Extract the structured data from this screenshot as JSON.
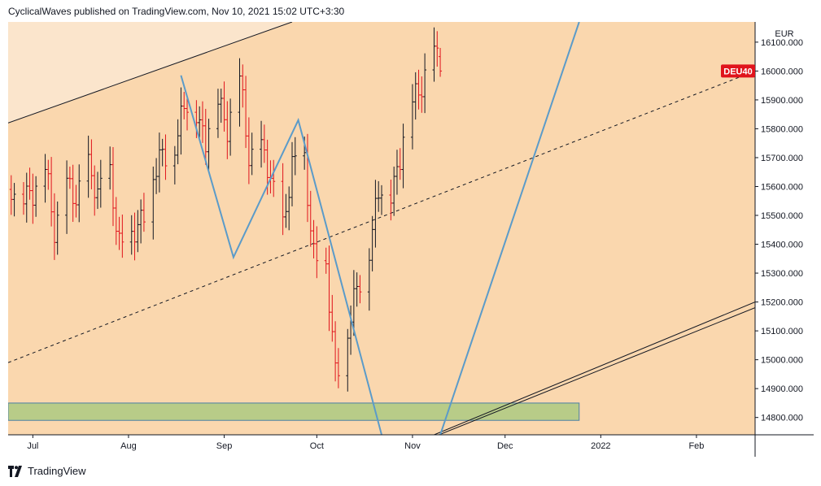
{
  "header": {
    "publisher": "CyclicalWaves",
    "published_text": "CyclicalWaves published on TradingView.com, Nov 10, 2021 15:02 UTC+3:30"
  },
  "footer": {
    "brand": "TradingView",
    "logo_icon": "tradingview-logo-icon"
  },
  "colors": {
    "background": "#fad7ae",
    "upper_channel_fill": "#fbe5cc",
    "bull_bar": "#131722",
    "bear_bar": "#e0141c",
    "wave_line": "#5b9bc9",
    "support_zone": "#b8cc88",
    "support_zone_border": "#4a7fa5",
    "label_red": "#e0141c"
  },
  "chart_data": {
    "type": "ohlc-bars",
    "symbol": "DEU40",
    "currency": "EUR",
    "last_price_label": "DEU40",
    "x_axis_labels": [
      "Jul",
      "Aug",
      "Sep",
      "Oct",
      "Nov",
      "Dec",
      "2022",
      "Feb"
    ],
    "x_axis_label_dates": [
      "2021-07-01",
      "2021-08-01",
      "2021-09-01",
      "2021-10-01",
      "2021-11-01",
      "2021-12-01",
      "2022-01-01",
      "2022-02-01"
    ],
    "y_axis_ticks": [
      "16100.000",
      "16000.000",
      "15900.000",
      "15800.000",
      "15700.000",
      "15600.000",
      "15500.000",
      "15400.000",
      "15300.000",
      "15200.000",
      "15100.000",
      "15000.000",
      "14900.000",
      "14800.000"
    ],
    "y_range": [
      14740,
      16170
    ],
    "x_range": [
      "2021-06-23",
      "2022-02-20"
    ],
    "series": [
      {
        "date": "2021-06-24",
        "close": 15590
      },
      {
        "date": "2021-06-28",
        "close": 15560
      },
      {
        "date": "2021-07-01",
        "close": 15600
      },
      {
        "date": "2021-07-05",
        "close": 15650
      },
      {
        "date": "2021-07-08",
        "close": 15440
      },
      {
        "date": "2021-07-12",
        "close": 15620
      },
      {
        "date": "2021-07-15",
        "close": 15520
      },
      {
        "date": "2021-07-19",
        "close": 15700
      },
      {
        "date": "2021-07-22",
        "close": 15560
      },
      {
        "date": "2021-07-26",
        "close": 15640
      },
      {
        "date": "2021-07-29",
        "close": 15420
      },
      {
        "date": "2021-08-02",
        "close": 15400
      },
      {
        "date": "2021-08-05",
        "close": 15500
      },
      {
        "date": "2021-08-09",
        "close": 15620
      },
      {
        "date": "2021-08-12",
        "close": 15700
      },
      {
        "date": "2021-08-16",
        "close": 15760
      },
      {
        "date": "2021-08-19",
        "close": 15860
      },
      {
        "date": "2021-08-23",
        "close": 15880
      },
      {
        "date": "2021-08-26",
        "close": 15760
      },
      {
        "date": "2021-08-30",
        "close": 15900
      },
      {
        "date": "2021-09-02",
        "close": 15820
      },
      {
        "date": "2021-09-06",
        "close": 15960
      },
      {
        "date": "2021-09-09",
        "close": 15700
      },
      {
        "date": "2021-09-13",
        "close": 15740
      },
      {
        "date": "2021-09-16",
        "close": 15600
      },
      {
        "date": "2021-09-20",
        "close": 15480
      },
      {
        "date": "2021-09-23",
        "close": 15660
      },
      {
        "date": "2021-09-27",
        "close": 15690
      },
      {
        "date": "2021-09-30",
        "close": 15380
      },
      {
        "date": "2021-10-04",
        "close": 15300
      },
      {
        "date": "2021-10-07",
        "close": 14980
      },
      {
        "date": "2021-10-11",
        "close": 15080
      },
      {
        "date": "2021-10-14",
        "close": 15240
      },
      {
        "date": "2021-10-18",
        "close": 15400
      },
      {
        "date": "2021-10-21",
        "close": 15560
      },
      {
        "date": "2021-10-25",
        "close": 15600
      },
      {
        "date": "2021-10-28",
        "close": 15700
      },
      {
        "date": "2021-11-01",
        "close": 15900
      },
      {
        "date": "2021-11-04",
        "close": 15970
      },
      {
        "date": "2021-11-08",
        "close": 16050
      },
      {
        "date": "2021-11-10",
        "close": 16000
      }
    ],
    "annotations": {
      "support_zone": {
        "y_low": 14790,
        "y_high": 14850,
        "x_start": "2021-06-23",
        "x_end": "2021-12-25"
      },
      "upper_channel_line": [
        {
          "date": "2021-06-23",
          "price": 15820
        },
        {
          "date": "2021-09-23",
          "price": 16170
        }
      ],
      "mid_channel_dashed_line": [
        {
          "date": "2021-06-23",
          "price": 14990
        },
        {
          "date": "2022-02-20",
          "price": 16000
        }
      ],
      "lower_channel_double_line": [
        {
          "date": "2021-11-08",
          "price": 14740
        },
        {
          "date": "2022-02-20",
          "price": 15200
        }
      ],
      "wave_path": [
        {
          "date": "2021-08-18",
          "price": 15985
        },
        {
          "date": "2021-09-04",
          "price": 15355
        },
        {
          "date": "2021-09-25",
          "price": 15830
        },
        {
          "date": "2021-10-22",
          "price": 14740
        }
      ],
      "wave_path_2": [
        {
          "date": "2021-11-10",
          "price": 14740
        },
        {
          "date": "2021-12-25",
          "price": 16170
        }
      ]
    }
  }
}
